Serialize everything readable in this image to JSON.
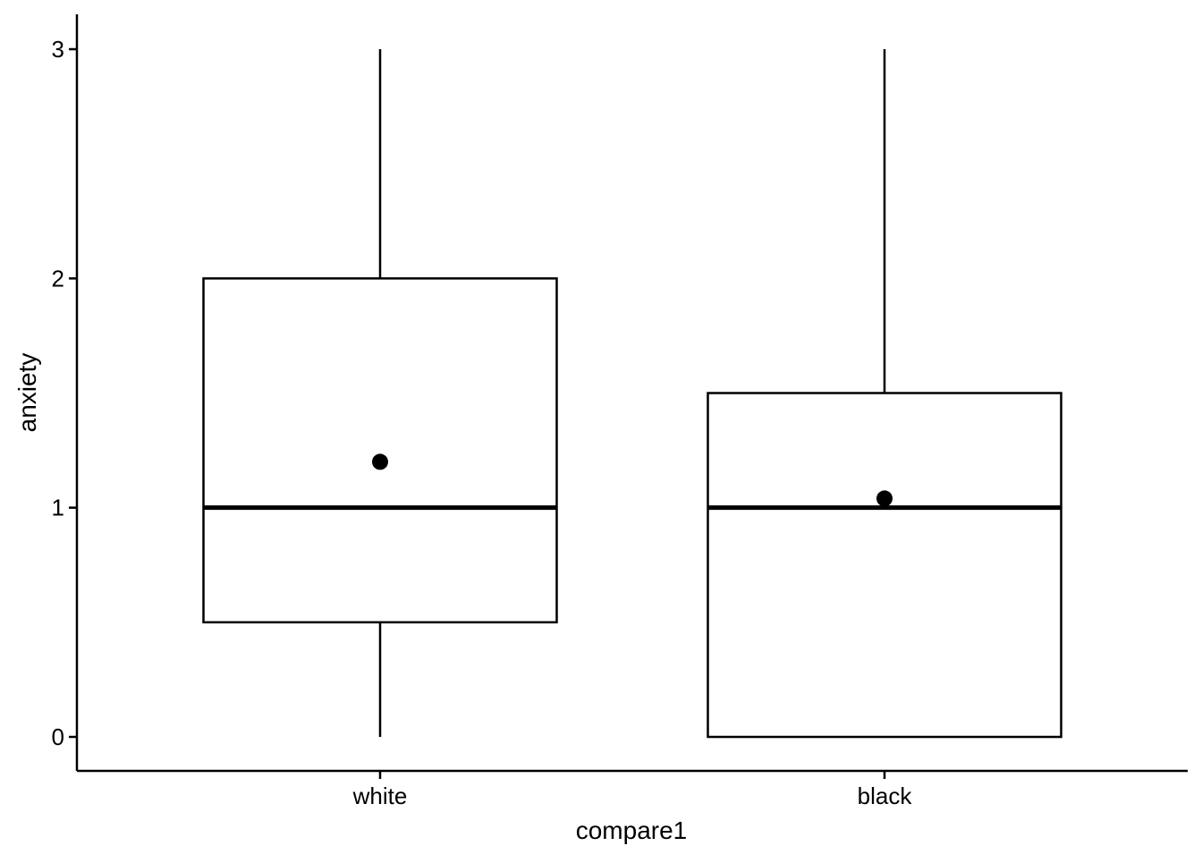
{
  "chart_data": {
    "type": "boxplot",
    "title": "",
    "xlabel": "compare1",
    "ylabel": "anxiety",
    "ylim": [
      -0.15,
      3.15
    ],
    "yticks": [
      0,
      1,
      2,
      3
    ],
    "grid": false,
    "legend": "none",
    "categories": [
      "white",
      "black"
    ],
    "boxes": [
      {
        "category": "white",
        "whisker_low": 0,
        "q1": 0.5,
        "median": 1,
        "q3": 2,
        "whisker_high": 3,
        "mean": 1.2
      },
      {
        "category": "black",
        "whisker_low": 0,
        "q1": 0,
        "median": 1,
        "q3": 1.5,
        "whisker_high": 3,
        "mean": 1.04
      }
    ],
    "colors": {
      "box_fill": "#ffffff",
      "line": "#000000",
      "mean_point": "#000000"
    }
  }
}
